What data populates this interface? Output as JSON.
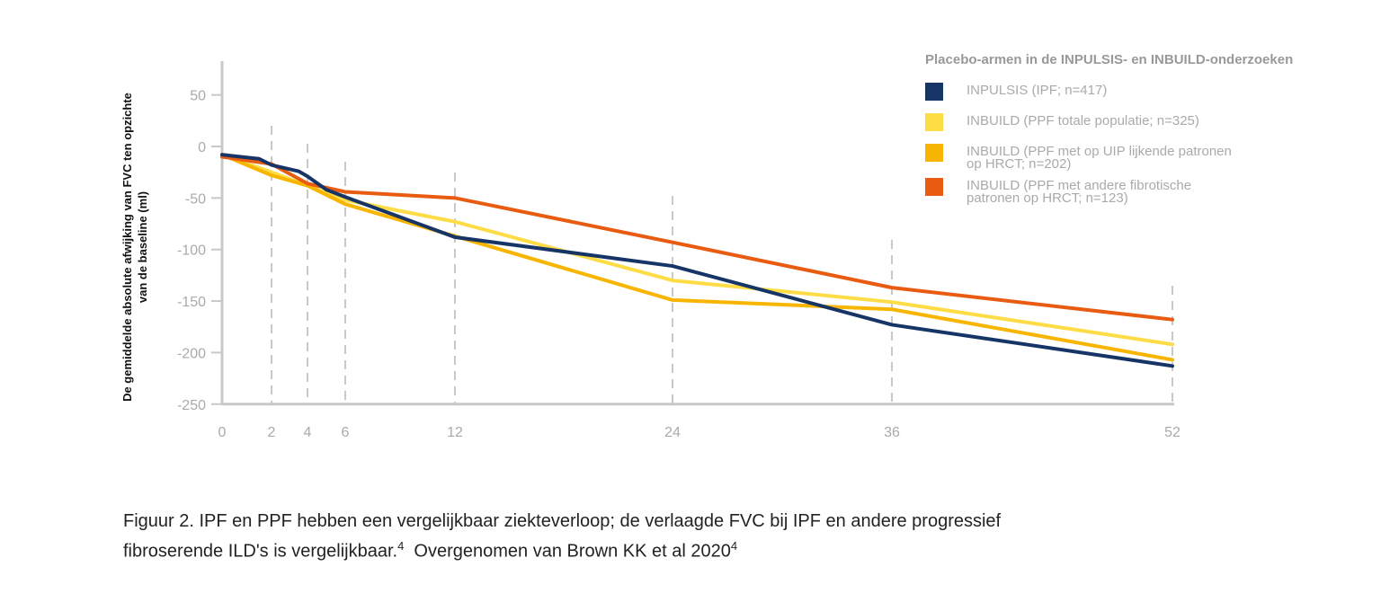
{
  "chart_data": {
    "type": "line",
    "title": "",
    "ylabel": "De gemiddelde absolute afwijking van FVC ten opzichte van de baseline (ml)",
    "xlabel": "",
    "x_ticks": [
      0,
      2,
      4,
      6,
      12,
      24,
      36,
      52
    ],
    "y_ticks": [
      50,
      0,
      -50,
      -100,
      -150,
      -200,
      -250
    ],
    "ylim": [
      -250,
      70
    ],
    "xlim": [
      0,
      52
    ],
    "grid": "dashed vertical lines at weeks 2, 4, 6, 12, 24, 36, 52",
    "legend_position": "top-right",
    "legend_title": "Placebo-armen in de INPULSIS- en INBUILD-onderzoeken",
    "series": [
      {
        "name": "INPULSIS (IPF; n=417)",
        "name_line2": "",
        "color": "#163566",
        "x": [
          0,
          1.5,
          2,
          3.5,
          4,
          5,
          6,
          12,
          24,
          36,
          52
        ],
        "y": [
          -8,
          -12,
          -18,
          -24,
          -29,
          -42,
          -49,
          -88,
          -116,
          -173,
          -213
        ]
      },
      {
        "name": "INBUILD (PPF totale populatie; n=325)",
        "name_line2": "",
        "color": "#FDDC45",
        "x": [
          0,
          2,
          4,
          6,
          12,
          24,
          36,
          52
        ],
        "y": [
          -8,
          -25,
          -38,
          -52,
          -73,
          -130,
          -151,
          -192
        ]
      },
      {
        "name": "INBUILD (PPF met op UIP lijkende patronen",
        "name_line2": "op HRCT; n=202)",
        "color": "#F8B500",
        "x": [
          0,
          2,
          4,
          6,
          12,
          24,
          36,
          52
        ],
        "y": [
          -8,
          -28,
          -38,
          -56,
          -87,
          -149,
          -158,
          -207
        ]
      },
      {
        "name": "INBUILD (PPF met andere fibrotische",
        "name_line2": "patronen op HRCT; n=123)",
        "color": "#E85B10",
        "x": [
          0,
          2,
          4,
          6,
          12,
          24,
          36,
          52
        ],
        "y": [
          -10,
          -17,
          -36,
          -44,
          -50,
          -93,
          -137,
          -168
        ]
      }
    ]
  },
  "caption": {
    "line1": "Figuur 2. IPF en PPF hebben een vergelijkbaar ziekteverloop; de verlaagde FVC bij IPF en andere progressief",
    "line2a": "fibroserende ILD's is vergelijkbaar.",
    "ref1": "4",
    "line2b": "  Overgenomen van Brown KK et al 2020",
    "ref2": "4"
  }
}
